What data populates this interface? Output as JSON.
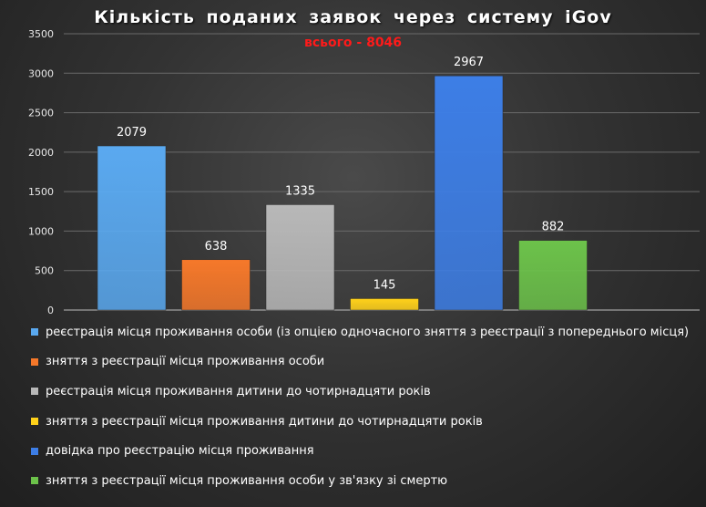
{
  "chart_data": {
    "type": "bar",
    "title": "Кількість  поданих  заявок  через  систему  iGov",
    "subtitle": "всього - 8046",
    "ylim": [
      0,
      3500
    ],
    "yticks": [
      0,
      500,
      1000,
      1500,
      2000,
      2500,
      3000,
      3500
    ],
    "grid": true,
    "legend_position": "bottom",
    "series": [
      {
        "name": "реєстрація місця проживання особи (із опцією одночасного зняття з реєстрації з попереднього місця)",
        "value": 2079,
        "color": "#5aa9f0"
      },
      {
        "name": "зняття з реєстрації місця проживання особи",
        "value": 638,
        "color": "#f5782a"
      },
      {
        "name": "реєстрація місця проживання дитини до чотирнадцяти років",
        "value": 1335,
        "color": "#b8b8b8"
      },
      {
        "name": "зняття з реєстрації місця проживання дитини до чотирнадцяти років",
        "value": 145,
        "color": "#ffd11a"
      },
      {
        "name": "довідка про  реєстрацію місця проживання",
        "value": 2967,
        "color": "#3d7ee6"
      },
      {
        "name": "зняття з реєстрації місця проживання особи у зв'язку зі смертю",
        "value": 882,
        "color": "#6cc24a"
      }
    ]
  }
}
